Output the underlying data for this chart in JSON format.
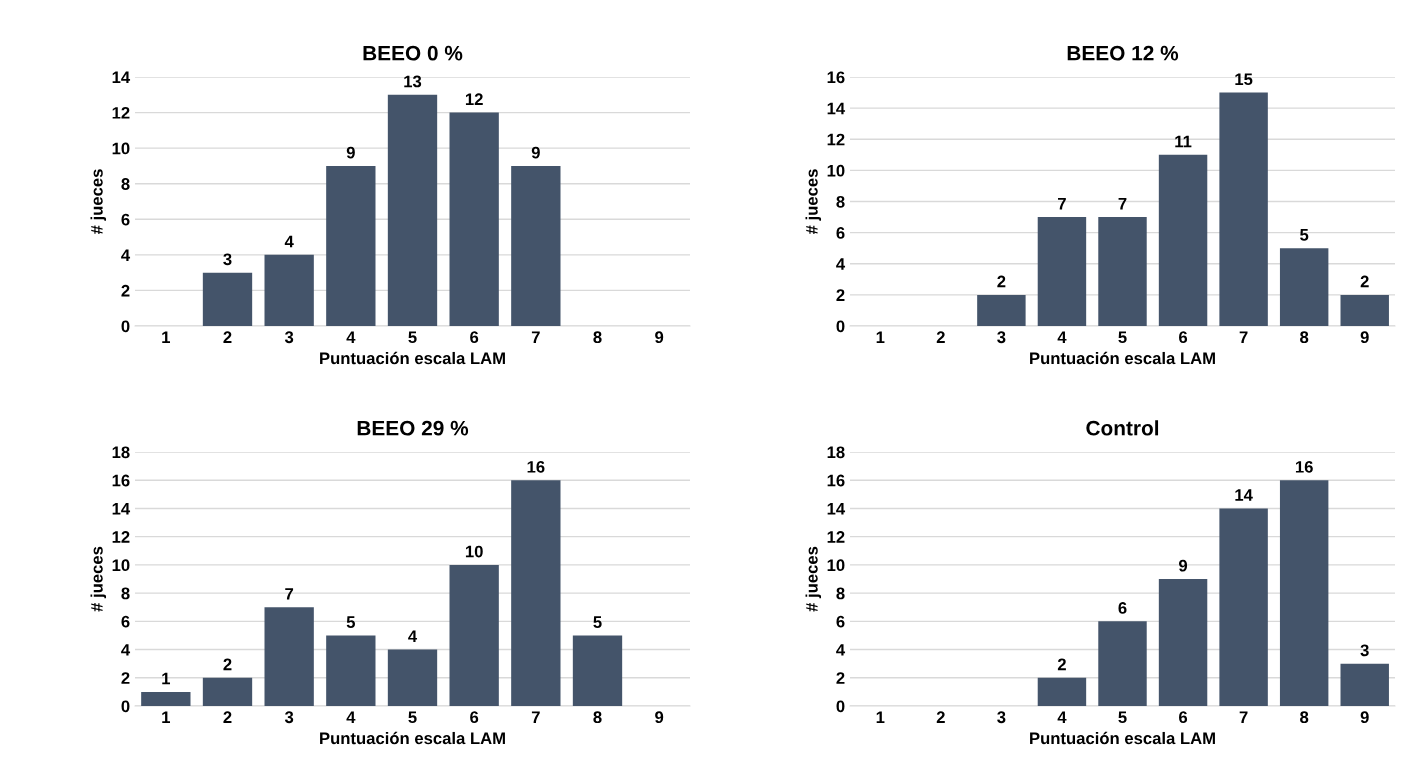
{
  "chart_data": [
    {
      "type": "bar",
      "title": "BEEO 0 %",
      "xlabel": "Puntuación escala LAM",
      "ylabel": "# jueces",
      "categories": [
        "1",
        "2",
        "3",
        "4",
        "5",
        "6",
        "7",
        "8",
        "9"
      ],
      "values": [
        0,
        3,
        4,
        9,
        13,
        12,
        9,
        0,
        0
      ],
      "value_labels": [
        null,
        "3",
        "4",
        "9",
        "13",
        "12",
        "9",
        null,
        null
      ],
      "color": "#44546a",
      "ylim": [
        0,
        14
      ],
      "yticks": [
        0,
        2,
        4,
        6,
        8,
        10,
        12,
        14
      ],
      "grid": "y"
    },
    {
      "type": "bar",
      "title": "BEEO 12 %",
      "xlabel": "Puntuación escala LAM",
      "ylabel": "# jueces",
      "categories": [
        "1",
        "2",
        "3",
        "4",
        "5",
        "6",
        "7",
        "8",
        "9"
      ],
      "values": [
        0,
        0,
        2,
        7,
        7,
        11,
        15,
        5,
        2
      ],
      "value_labels": [
        null,
        null,
        "2",
        "7",
        "7",
        "11",
        "15",
        "5",
        "2"
      ],
      "color": "#44546a",
      "ylim": [
        0,
        16
      ],
      "yticks": [
        0,
        2,
        4,
        6,
        8,
        10,
        12,
        14,
        16
      ],
      "grid": "y"
    },
    {
      "type": "bar",
      "title": "BEEO 29 %",
      "xlabel": "Puntuación escala LAM",
      "ylabel": "# jueces",
      "categories": [
        "1",
        "2",
        "3",
        "4",
        "5",
        "6",
        "7",
        "8",
        "9"
      ],
      "values": [
        1,
        2,
        7,
        5,
        4,
        10,
        16,
        5,
        0
      ],
      "value_labels": [
        "1",
        "2",
        "7",
        "5",
        "4",
        "10",
        "16",
        "5",
        null
      ],
      "color": "#44546a",
      "ylim": [
        0,
        18
      ],
      "yticks": [
        0,
        2,
        4,
        6,
        8,
        10,
        12,
        14,
        16,
        18
      ],
      "grid": "y"
    },
    {
      "type": "bar",
      "title": "Control",
      "xlabel": "Puntuación escala LAM",
      "ylabel": "# jueces",
      "categories": [
        "1",
        "2",
        "3",
        "4",
        "5",
        "6",
        "7",
        "8",
        "9"
      ],
      "values": [
        0,
        0,
        0,
        2,
        6,
        9,
        14,
        16,
        3
      ],
      "value_labels": [
        null,
        null,
        null,
        "2",
        "6",
        "9",
        "14",
        "16",
        "3"
      ],
      "color": "#44546a",
      "ylim": [
        0,
        18
      ],
      "yticks": [
        0,
        2,
        4,
        6,
        8,
        10,
        12,
        14,
        16,
        18
      ],
      "grid": "y"
    }
  ]
}
